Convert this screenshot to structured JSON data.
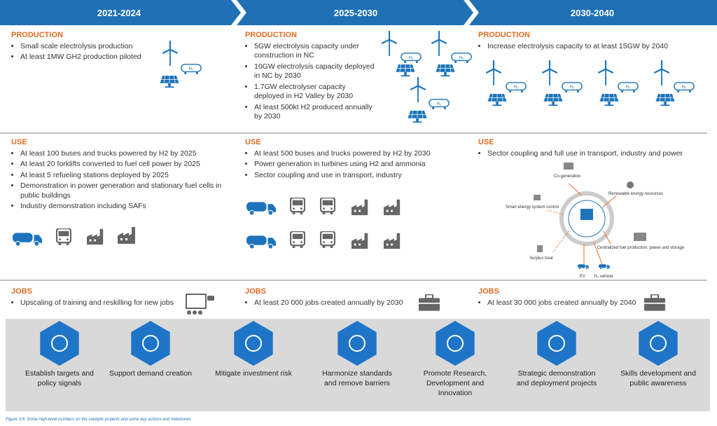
{
  "header": {
    "periods": [
      "2021-2024",
      "2025-2030",
      "2030-2040"
    ]
  },
  "columns": [
    {
      "production": {
        "heading": "PRODUCTION",
        "items": [
          "Small scale electrolysis production",
          "At least 1MW GH2 production piloted"
        ]
      },
      "use": {
        "heading": "USE",
        "items": [
          "At least 100 buses and trucks powered by H2 by 2025",
          "At least 20 forklifts converted to fuel cell power by 2025",
          "At least 5 refueling stations deployed by 2025",
          "Demonstration in power generation and stationary fuel cells in public buildings",
          "Industry demonstration including SAFs"
        ]
      },
      "jobs": {
        "heading": "JOBS",
        "items": [
          "Upscaling of training and reskilling for new jobs"
        ]
      }
    },
    {
      "production": {
        "heading": "PRODUCTION",
        "items": [
          "5GW electrolysis capacity under construction in NC",
          "10GW electrolysis capacity deployed in NC by 2030",
          "1.7GW electrolyser capacity deployed in H2 Valley by 2030",
          "At least 500kt H2 produced annually by 2030"
        ]
      },
      "use": {
        "heading": "USE",
        "items": [
          "At least 500 buses and trucks powered by H2 by 2030",
          "Power generation in turbines using  H2 and ammonia",
          "Sector coupling  and use in transport, industry"
        ]
      },
      "jobs": {
        "heading": "JOBS",
        "items": [
          "At least 20 000 jobs created annually by 2030"
        ]
      }
    },
    {
      "production": {
        "heading": "PRODUCTION",
        "items": [
          "Increase electrolysis capacity to at least 15GW by 2040"
        ]
      },
      "use": {
        "heading": "USE",
        "items": [
          "Sector coupling  and full use in transport, industry and power"
        ]
      },
      "jobs": {
        "heading": "JOBS",
        "items": [
          "At least 30 000 jobs created annually by 2040"
        ]
      }
    }
  ],
  "use_diagram": {
    "labels": [
      "Co-generation",
      "Renewable energy resources",
      "Smart energy system control",
      "Surplus heat",
      "Centralized fuel production, power and storage",
      "EV",
      "H₂ vehicle"
    ]
  },
  "icon_text": {
    "tank": "H₂"
  },
  "actions": [
    "Establish targets and policy signals",
    "Support demand creation",
    "Mitigate investment risk",
    "Harmonize standards and remove barriers",
    "Promote Research, Development and Innovation",
    "Strategic demonstration and deployment projects",
    "Skills development and public awareness"
  ],
  "caption": "Figure 3.6: Some high-level numbers on the catalytic projects and some key actions and milestones"
}
